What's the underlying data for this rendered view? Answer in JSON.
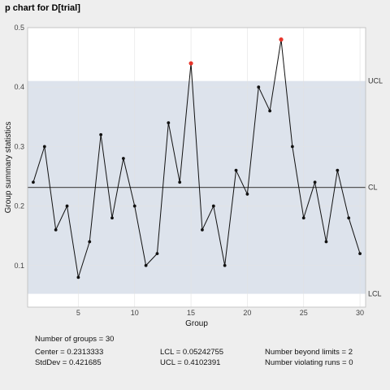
{
  "chart_data": {
    "type": "line",
    "title": "p chart for D[trial]",
    "xlabel": "Group",
    "ylabel": "Group summary statistics",
    "xlim": [
      0.5,
      30.5
    ],
    "ylim": [
      0.03,
      0.5
    ],
    "xticks": [
      5,
      10,
      15,
      20,
      25,
      30
    ],
    "yticks": [
      0.1,
      0.2,
      0.3,
      0.4,
      0.5
    ],
    "grid": true,
    "series": [
      {
        "x": [
          1,
          2,
          3,
          4,
          5,
          6,
          7,
          8,
          9,
          10,
          11,
          12,
          13,
          14,
          15,
          16,
          17,
          18,
          19,
          20,
          21,
          22,
          23,
          24,
          25,
          26,
          27,
          28,
          29,
          30
        ],
        "values": [
          0.24,
          0.3,
          0.16,
          0.2,
          0.08,
          0.14,
          0.32,
          0.18,
          0.28,
          0.2,
          0.1,
          0.12,
          0.34,
          0.24,
          0.44,
          0.16,
          0.2,
          0.1,
          0.26,
          0.22,
          0.4,
          0.36,
          0.48,
          0.3,
          0.18,
          0.24,
          0.14,
          0.26,
          0.18,
          0.12
        ]
      }
    ],
    "out_of_control_groups": [
      15,
      23
    ],
    "limits": {
      "center": 0.2313333,
      "lcl": 0.05242755,
      "ucl": 0.4102391,
      "labels": {
        "ucl": "UCL",
        "cl": "CL",
        "lcl": "LCL"
      }
    },
    "colors": {
      "band": "#dde3ec",
      "line": "#111111",
      "point": "#111111",
      "violation": "#e8352b",
      "center_line": "#555555",
      "grid": "#e3e3e3"
    }
  },
  "stats": {
    "groups": "Number of groups = 30",
    "center": "Center = 0.2313333",
    "stddev": "StdDev = 0.421685",
    "lcl": "LCL = 0.05242755",
    "ucl": "UCL = 0.4102391",
    "beyond": "Number beyond limits = 2",
    "violating": "Number violating runs = 0"
  }
}
